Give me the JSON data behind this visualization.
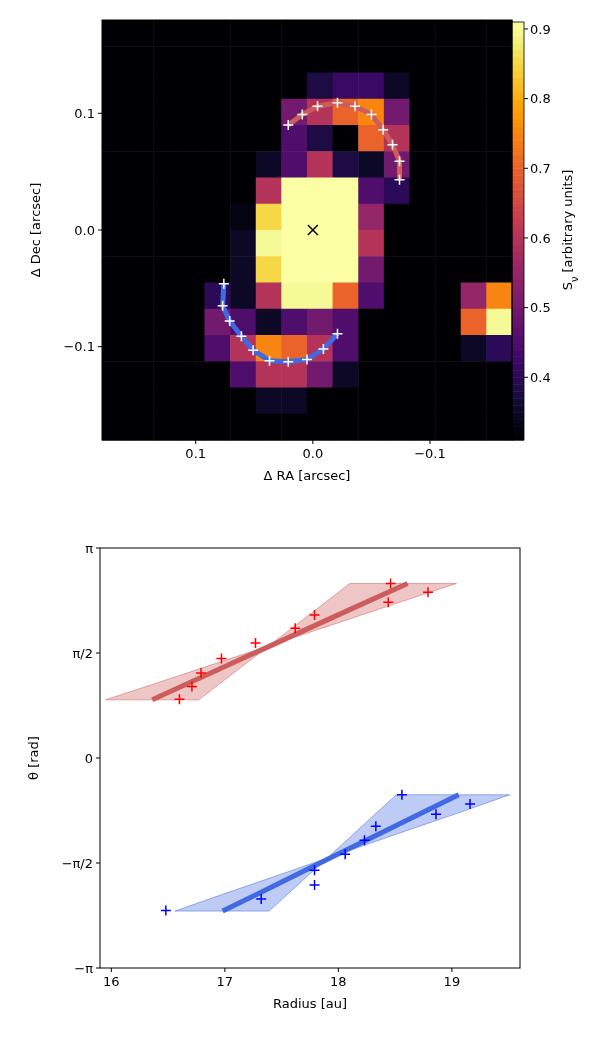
{
  "chart_data": [
    {
      "type": "scatter",
      "xlabel": "Δ RA [arcsec]",
      "ylabel": "Δ Dec [arcsec]",
      "xlim": [
        0.18,
        -0.17
      ],
      "xticks": [
        0.1,
        {
          "value": 0,
          "label": "0.0"
        },
        {
          "value": -0.1,
          "label": "−0.1"
        }
      ],
      "ylim": [
        -0.18,
        0.18
      ],
      "yticks": [
        {
          "value": -0.1,
          "label": "−0.1"
        },
        {
          "value": 0,
          "label": "0.0"
        },
        0.1
      ],
      "series": [
        {
          "type": "line",
          "color": "#cd5c5c",
          "x": [
            0.021,
            0.009,
            -0.004,
            -0.021,
            -0.036,
            -0.05,
            -0.06,
            -0.068,
            -0.074,
            -0.074
          ],
          "values": [
            0.09,
            0.099,
            0.106,
            0.109,
            0.106,
            0.099,
            0.086,
            0.073,
            0.059,
            0.043
          ]
        },
        {
          "type": "scatter",
          "marker": "cross",
          "color": "#ffffff",
          "x": [
            0.021,
            0.009,
            -0.004,
            -0.021,
            -0.036,
            -0.05,
            -0.06,
            -0.068,
            -0.074,
            -0.074
          ],
          "values": [
            0.09,
            0.099,
            0.106,
            0.109,
            0.106,
            0.099,
            0.086,
            0.073,
            0.059,
            0.043
          ]
        },
        {
          "type": "line",
          "color": "#4169e1",
          "x": [
            0.076,
            0.077,
            0.071,
            0.061,
            0.051,
            0.037,
            0.021,
            0.005,
            -0.009,
            -0.021
          ],
          "values": [
            -0.046,
            -0.065,
            -0.078,
            -0.091,
            -0.103,
            -0.112,
            -0.113,
            -0.111,
            -0.102,
            -0.089
          ]
        },
        {
          "type": "scatter",
          "marker": "cross",
          "color": "#ffffff",
          "x": [
            0.076,
            0.077,
            0.071,
            0.061,
            0.051,
            0.037,
            0.021,
            0.005,
            -0.009,
            -0.021
          ],
          "values": [
            -0.046,
            -0.065,
            -0.078,
            -0.091,
            -0.103,
            -0.112,
            -0.113,
            -0.111,
            -0.102,
            -0.089
          ]
        },
        {
          "type": "scatter",
          "marker": "x",
          "color": "#000000",
          "x": [
            0
          ],
          "values": [
            0
          ]
        }
      ]
    },
    {
      "type": "heatmap",
      "clabel": "S$_{ν}$ [arbitrary units]",
      "tick_labels": false,
      "categories": [
        null,
        null,
        null,
        null,
        null,
        null,
        null,
        null,
        null,
        null,
        null,
        null,
        null,
        null,
        null,
        null
      ],
      "y_categories": [
        null,
        null,
        null,
        null,
        null,
        null,
        null,
        null,
        null,
        null,
        null,
        null,
        null,
        null,
        null,
        null
      ],
      "clim": [
        0.31,
        0.91
      ],
      "cticks": [
        0.4,
        0.5,
        0.6,
        0.7,
        0.8,
        0.9
      ],
      "cells": [
        [
          0.31,
          0.31,
          0.31,
          0.31,
          0.31,
          0.31,
          0.31,
          0.31,
          0.31,
          0.31,
          0.31,
          0.31,
          0.31,
          0.31,
          0.31,
          0.31
        ],
        [
          0.31,
          0.31,
          0.31,
          0.31,
          0.31,
          0.31,
          0.31,
          0.31,
          0.31,
          0.31,
          0.31,
          0.31,
          0.31,
          0.31,
          0.31,
          0.31
        ],
        [
          0.31,
          0.31,
          0.31,
          0.31,
          0.31,
          0.31,
          0.31,
          0.31,
          0.38,
          0.42,
          0.42,
          0.35,
          0.31,
          0.31,
          0.31,
          0.31
        ],
        [
          0.31,
          0.31,
          0.31,
          0.31,
          0.31,
          0.31,
          0.31,
          0.5,
          0.6,
          0.7,
          0.75,
          0.5,
          0.31,
          0.31,
          0.31,
          0.31
        ],
        [
          0.31,
          0.31,
          0.31,
          0.31,
          0.31,
          0.31,
          0.31,
          0.45,
          0.38,
          0.31,
          0.7,
          0.6,
          0.31,
          0.31,
          0.31,
          0.31
        ],
        [
          0.31,
          0.31,
          0.31,
          0.31,
          0.31,
          0.31,
          0.35,
          0.45,
          0.6,
          0.38,
          0.35,
          0.5,
          0.31,
          0.31,
          0.31,
          0.31
        ],
        [
          0.31,
          0.31,
          0.31,
          0.31,
          0.31,
          0.31,
          0.6,
          0.91,
          0.91,
          0.91,
          0.45,
          0.4,
          0.31,
          0.31,
          0.31,
          0.31
        ],
        [
          0.31,
          0.31,
          0.31,
          0.31,
          0.31,
          0.33,
          0.85,
          0.91,
          0.91,
          0.91,
          0.55,
          0.31,
          0.31,
          0.31,
          0.31,
          0.31
        ],
        [
          0.31,
          0.31,
          0.31,
          0.31,
          0.31,
          0.35,
          0.9,
          0.91,
          0.91,
          0.91,
          0.6,
          0.31,
          0.31,
          0.31,
          0.31,
          0.31
        ],
        [
          0.31,
          0.31,
          0.31,
          0.31,
          0.31,
          0.35,
          0.85,
          0.91,
          0.91,
          0.91,
          0.5,
          0.31,
          0.31,
          0.31,
          0.31,
          0.31
        ],
        [
          0.31,
          0.31,
          0.31,
          0.31,
          0.4,
          0.35,
          0.6,
          0.9,
          0.9,
          0.7,
          0.45,
          0.31,
          0.31,
          0.31,
          0.55,
          0.75
        ],
        [
          0.31,
          0.31,
          0.31,
          0.31,
          0.5,
          0.45,
          0.35,
          0.45,
          0.5,
          0.45,
          0.31,
          0.31,
          0.31,
          0.31,
          0.7,
          0.9
        ],
        [
          0.31,
          0.31,
          0.31,
          0.31,
          0.45,
          0.6,
          0.75,
          0.7,
          0.6,
          0.45,
          0.31,
          0.31,
          0.31,
          0.31,
          0.35,
          0.4
        ],
        [
          0.31,
          0.31,
          0.31,
          0.31,
          0.31,
          0.45,
          0.6,
          0.6,
          0.5,
          0.35,
          0.31,
          0.31,
          0.31,
          0.31,
          0.31,
          0.31
        ],
        [
          0.31,
          0.31,
          0.31,
          0.31,
          0.31,
          0.31,
          0.35,
          0.35,
          0.31,
          0.31,
          0.31,
          0.31,
          0.31,
          0.31,
          0.31,
          0.31
        ],
        [
          0.31,
          0.31,
          0.31,
          0.31,
          0.31,
          0.31,
          0.31,
          0.31,
          0.31,
          0.31,
          0.31,
          0.31,
          0.31,
          0.31,
          0.31,
          0.31
        ]
      ]
    },
    {
      "type": "scatter",
      "xlabel": "Radius [au]",
      "ylabel": "θ [rad]",
      "xlim": [
        15.9,
        19.6
      ],
      "xticks": [
        16,
        17,
        18,
        19
      ],
      "ylim": [
        -3.1416,
        3.1416
      ],
      "yticks": [
        {
          "value": -3.1416,
          "label": "−π"
        },
        {
          "value": -1.5708,
          "label": "−π/2"
        },
        0,
        {
          "value": 1.5708,
          "label": "π/2"
        },
        {
          "value": 3.1416,
          "label": "π"
        }
      ],
      "series": [
        {
          "type": "line",
          "color": "#cd5c5c",
          "x": [
            15.95,
            16.36,
            16.77,
            17.39,
            18.1,
            18.61,
            19.04
          ],
          "values": [
            null,
            0.87,
            1.19,
            1.67,
            2.22,
            2.61,
            null
          ],
          "lower": [
            0.87,
            0.87,
            0.87,
            1.68,
            2.08,
            2.37,
            2.61
          ],
          "upper": [
            0.87,
            1.1,
            1.33,
            1.68,
            2.61,
            2.61,
            2.61
          ]
        },
        {
          "type": "line",
          "color": "#4169e1",
          "x": [
            16.56,
            16.98,
            17.39,
            17.9,
            18.51,
            19.06,
            19.51
          ],
          "values": [
            null,
            -2.29,
            -1.95,
            -1.52,
            -1.01,
            -0.55,
            null
          ],
          "lower": [
            -2.29,
            -2.29,
            -2.29,
            -1.5,
            -1.14,
            -0.82,
            -0.55
          ],
          "upper": [
            -2.29,
            -2.04,
            -1.8,
            -1.5,
            -0.55,
            -0.55,
            -0.55
          ]
        },
        {
          "type": "scatter",
          "marker": "cross",
          "color": "#ff0000",
          "x": [
            16.6,
            16.71,
            16.79,
            16.97,
            17.27,
            17.62,
            17.79,
            18.46,
            18.44,
            18.79
          ],
          "values": [
            0.88,
            1.07,
            1.27,
            1.49,
            1.72,
            1.94,
            2.14,
            2.61,
            2.33,
            2.48
          ]
        },
        {
          "type": "scatter",
          "marker": "cross",
          "color": "#0000ff",
          "x": [
            16.48,
            17.32,
            17.79,
            17.79,
            18.06,
            18.23,
            18.33,
            18.56,
            18.86,
            19.16
          ],
          "values": [
            -2.28,
            -2.11,
            -1.68,
            -1.9,
            -1.44,
            -1.23,
            -1.02,
            -0.55,
            -0.84,
            -0.69
          ]
        }
      ]
    }
  ]
}
